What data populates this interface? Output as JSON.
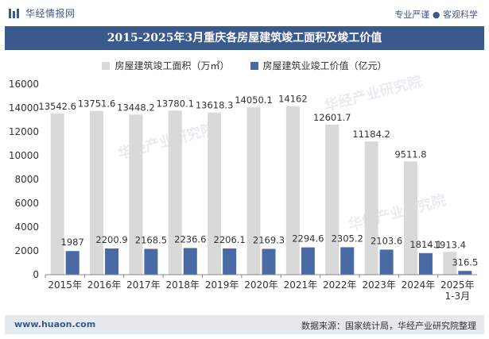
{
  "header": {
    "brand_name": "华经情报网",
    "tagline": "专业严谨 ● 客观科学"
  },
  "footer": {
    "website": "www.huaon.com",
    "source": "数据来源：国家统计局，华经产业研究院整理"
  },
  "colors": {
    "series_area": "#d9d9d9",
    "series_value": "#4a6aa5",
    "title_bg": "#3a5a8e"
  },
  "chart_data": {
    "type": "bar",
    "title": "2015-2025年3月重庆各房屋建筑竣工面积及竣工价值",
    "categories": [
      "2015年",
      "2016年",
      "2017年",
      "2018年",
      "2019年",
      "2020年",
      "2021年",
      "2022年",
      "2023年",
      "2024年",
      "2025年\n1-3月"
    ],
    "series": [
      {
        "name": "房屋建筑竣工面积（万㎡）",
        "values": [
          13542.6,
          13751.6,
          13448.2,
          13780.1,
          13618.3,
          14050.1,
          14162,
          12601.7,
          11184.2,
          9511.8,
          1913.4
        ],
        "labels": [
          "13542.6",
          "13751.6",
          "13448.2",
          "13780.1",
          "13618.3",
          "14050.1",
          "14162",
          "12601.7",
          "11184.2",
          "9511.8",
          "1913.4"
        ]
      },
      {
        "name": "房屋建筑业竣工价值（亿元）",
        "values": [
          1987,
          2200.9,
          2168.5,
          2236.6,
          2206.1,
          2169.3,
          2294.6,
          2305.2,
          2103.6,
          1814.1,
          316.5
        ],
        "labels": [
          "1987",
          "2200.9",
          "2168.5",
          "2236.6",
          "2206.1",
          "2169.3",
          "2294.6",
          "2305.2",
          "2103.6",
          "1814.1",
          "316.5"
        ]
      }
    ],
    "y_ticks": [
      "0",
      "2000",
      "4000",
      "6000",
      "8000",
      "10000",
      "12000",
      "14000",
      "16000"
    ],
    "ylim": [
      0,
      16000
    ],
    "xlabel": "",
    "ylabel": ""
  }
}
